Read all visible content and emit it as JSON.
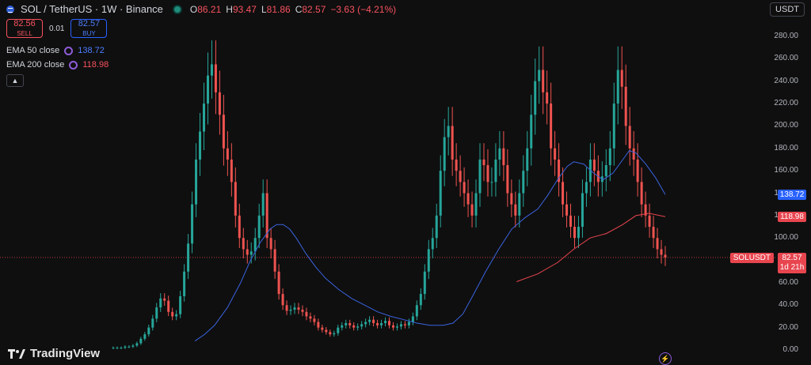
{
  "header": {
    "title": "SOL / TetherUS · 1W · Binance",
    "ohlc": [
      {
        "label": "O",
        "value": "86.21"
      },
      {
        "label": "H",
        "value": "93.47"
      },
      {
        "label": "L",
        "value": "81.86"
      },
      {
        "label": "C",
        "value": "82.57"
      },
      {
        "label": "",
        "value": "−3.63 (−4.21%)"
      }
    ]
  },
  "trade": {
    "sell_price": "82.56",
    "sell_label": "SELL",
    "spread": "0.01",
    "buy_price": "82.57",
    "buy_label": "BUY"
  },
  "indicators": [
    {
      "name": "EMA 50 close",
      "value": "138.72",
      "color": "#3a63e0"
    },
    {
      "name": "EMA 200 close",
      "value": "118.98",
      "color": "#e8454f"
    }
  ],
  "currency": "USDT",
  "price_tags": {
    "ema50": "138.72",
    "ema200": "118.98",
    "symbol": "SOLUSDT",
    "last": "82.57",
    "countdown": "1d 21h"
  },
  "logo": "TradingView",
  "colors": {
    "up": "#26a69a",
    "down": "#ef5350",
    "ema50": "#3a63e0",
    "ema200": "#e8454f",
    "background": "#0f0f0f"
  },
  "chart_data": {
    "type": "candlestick",
    "y_axis_ticks": [
      "280.00",
      "260.00",
      "240.00",
      "220.00",
      "200.00",
      "180.00",
      "160.00",
      "140.00",
      "120.00",
      "100.00",
      "80.00",
      "60.00",
      "40.00",
      "20.00",
      "0.00"
    ],
    "ylim": [
      0,
      290
    ],
    "grid": false,
    "close_series": [
      2,
      2,
      2,
      3,
      3,
      4,
      6,
      10,
      14,
      20,
      28,
      38,
      46,
      44,
      34,
      30,
      32,
      48,
      70,
      95,
      130,
      170,
      195,
      220,
      245,
      255,
      230,
      210,
      180,
      170,
      150,
      120,
      100,
      90,
      85,
      88,
      100,
      120,
      140,
      100,
      90,
      70,
      50,
      40,
      35,
      36,
      38,
      36,
      34,
      30,
      28,
      25,
      20,
      18,
      16,
      14,
      15,
      20,
      22,
      24,
      22,
      20,
      21,
      23,
      25,
      27,
      24,
      22,
      24,
      26,
      22,
      20,
      21,
      23,
      22,
      25,
      30,
      40,
      50,
      70,
      90,
      100,
      120,
      160,
      190,
      200,
      170,
      160,
      150,
      140,
      130,
      120,
      140,
      170,
      165,
      150,
      150,
      170,
      180,
      165,
      140,
      130,
      120,
      140,
      160,
      180,
      210,
      240,
      250,
      230,
      220,
      180,
      170,
      150,
      130,
      120,
      110,
      100,
      110,
      140,
      150,
      170,
      160,
      150,
      155,
      165,
      180,
      220,
      250,
      235,
      200,
      180,
      170,
      150,
      130,
      120,
      110,
      100,
      90,
      85,
      82.57
    ],
    "ema50_series": [
      {
        "i": 50,
        "v": 8
      },
      {
        "i": 56,
        "v": 14
      },
      {
        "i": 62,
        "v": 22
      },
      {
        "i": 70,
        "v": 38
      },
      {
        "i": 78,
        "v": 60
      },
      {
        "i": 84,
        "v": 80
      },
      {
        "i": 90,
        "v": 96
      },
      {
        "i": 96,
        "v": 108
      },
      {
        "i": 100,
        "v": 112
      },
      {
        "i": 104,
        "v": 112
      },
      {
        "i": 108,
        "v": 108
      },
      {
        "i": 112,
        "v": 100
      },
      {
        "i": 118,
        "v": 86
      },
      {
        "i": 124,
        "v": 74
      },
      {
        "i": 130,
        "v": 64
      },
      {
        "i": 138,
        "v": 54
      },
      {
        "i": 146,
        "v": 46
      },
      {
        "i": 154,
        "v": 40
      },
      {
        "i": 162,
        "v": 34
      },
      {
        "i": 170,
        "v": 30
      },
      {
        "i": 178,
        "v": 27
      },
      {
        "i": 186,
        "v": 24
      },
      {
        "i": 194,
        "v": 22
      },
      {
        "i": 202,
        "v": 22
      },
      {
        "i": 208,
        "v": 24
      },
      {
        "i": 214,
        "v": 32
      },
      {
        "i": 220,
        "v": 48
      },
      {
        "i": 228,
        "v": 70
      },
      {
        "i": 236,
        "v": 90
      },
      {
        "i": 244,
        "v": 108
      },
      {
        "i": 252,
        "v": 118
      },
      {
        "i": 260,
        "v": 126
      },
      {
        "i": 266,
        "v": 138
      },
      {
        "i": 272,
        "v": 152
      },
      {
        "i": 278,
        "v": 164
      },
      {
        "i": 282,
        "v": 168
      },
      {
        "i": 288,
        "v": 166
      },
      {
        "i": 294,
        "v": 158
      },
      {
        "i": 300,
        "v": 152
      },
      {
        "i": 306,
        "v": 158
      },
      {
        "i": 312,
        "v": 170
      },
      {
        "i": 316,
        "v": 178
      },
      {
        "i": 320,
        "v": 176
      },
      {
        "i": 326,
        "v": 166
      },
      {
        "i": 332,
        "v": 154
      },
      {
        "i": 338,
        "v": 138.72
      }
    ],
    "ema200_series": [
      {
        "i": 247,
        "v": 61
      },
      {
        "i": 260,
        "v": 68
      },
      {
        "i": 272,
        "v": 78
      },
      {
        "i": 282,
        "v": 90
      },
      {
        "i": 292,
        "v": 100
      },
      {
        "i": 302,
        "v": 104
      },
      {
        "i": 312,
        "v": 112
      },
      {
        "i": 320,
        "v": 120
      },
      {
        "i": 328,
        "v": 122
      },
      {
        "i": 338,
        "v": 118.98
      }
    ],
    "last_price": 82.57
  }
}
